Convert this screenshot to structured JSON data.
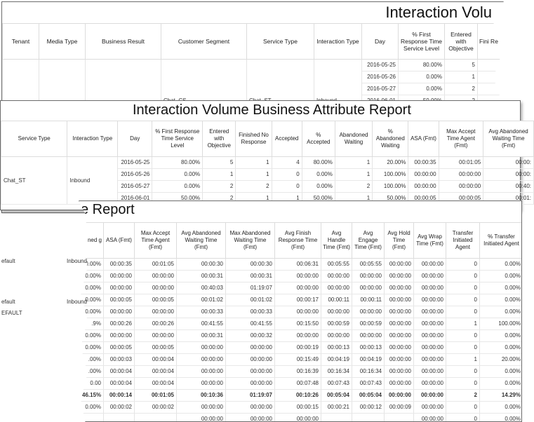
{
  "report1": {
    "title": "Interaction Volu",
    "columns": [
      "Tenant",
      "Media Type",
      "Business Result",
      "Customer Segment",
      "Service Type",
      "Interaction Type",
      "Day",
      "% First Response Time Service Level",
      "Entered with Objective",
      "Fini Re"
    ],
    "segment_label": "Chat_CS",
    "service_label": "Chat_ST",
    "interaction_label": "Inbound",
    "rows": [
      [
        "2016-05-25",
        "80.00%",
        "5"
      ],
      [
        "2016-05-26",
        "0.00%",
        "1"
      ],
      [
        "2016-05-27",
        "0.00%",
        "2"
      ],
      [
        "2016-06-01",
        "50.00%",
        "2"
      ]
    ]
  },
  "report2": {
    "title": "Interaction Volume Business Attribute Report",
    "columns": [
      "Service Type",
      "Interaction Type",
      "Day",
      "% First Response Time Service Level",
      "Entered with Objective",
      "Finished No Response",
      "Accepted",
      "% Accepted",
      "Abandoned Waiting",
      "% Abandoned Waiting",
      "ASA (Fmt)",
      "Max Accept Time Agent (Fmt)",
      "Avg Abandoned Waiting Time (Fmt)"
    ],
    "service_label": "Chat_ST",
    "interaction_label": "Inbound",
    "rows": [
      [
        "2016-05-25",
        "80.00%",
        "5",
        "1",
        "4",
        "80.00%",
        "1",
        "20.00%",
        "00:00:35",
        "00:01:05",
        "00:00:"
      ],
      [
        "2016-05-26",
        "0.00%",
        "1",
        "1",
        "0",
        "0.00%",
        "1",
        "100.00%",
        "00:00:00",
        "00:00:00",
        "00:00:"
      ],
      [
        "2016-05-27",
        "0.00%",
        "2",
        "2",
        "0",
        "0.00%",
        "2",
        "100.00%",
        "00:00:00",
        "00:00:00",
        "00:40:"
      ],
      [
        "2016-06-01",
        "50.00%",
        "2",
        "1",
        "1",
        "50.00%",
        "1",
        "50.00%",
        "00:00:05",
        "00:00:05",
        "00:01:"
      ]
    ]
  },
  "report3": {
    "title": "e Report",
    "columns": [
      "ned g",
      "ASA (Fmt)",
      "Max Accept Time Agent (Fmt)",
      "Avg Abandoned Waiting Time (Fmt)",
      "Max Abandoned Waiting Time (Fmt)",
      "Avg Finish Response Time (Fmt)",
      "Avg Handle Time (Fmt)",
      "Avg Engage Time (Fmt)",
      "Avg Hold Time (Fmt)",
      "Avg Wrap Time (Fmt)",
      "Transfer Initiated Agent",
      "% Transfer Initiated Agent"
    ],
    "rows": [
      [
        "0.00%",
        "00:00:35",
        "00:01:05",
        "00:00:30",
        "00:00:30",
        "00:06:31",
        "00:05:55",
        "00:05:55",
        "00:00:00",
        "00:00:00",
        "0",
        "0.00%"
      ],
      [
        "0.00%",
        "00:00:00",
        "00:00:00",
        "00:00:31",
        "00:00:31",
        "00:00:00",
        "00:00:00",
        "00:00:00",
        "00:00:00",
        "00:00:00",
        "0",
        "0.00%"
      ],
      [
        "0.00%",
        "00:00:00",
        "00:00:00",
        "00:40:03",
        "01:19:07",
        "00:00:00",
        "00:00:00",
        "00:00:00",
        "00:00:00",
        "00:00:00",
        "0",
        "0.00%"
      ],
      [
        "0.00%",
        "00:00:05",
        "00:00:05",
        "00:01:02",
        "00:01:02",
        "00:00:17",
        "00:00:11",
        "00:00:11",
        "00:00:00",
        "00:00:00",
        "0",
        "0.00%"
      ],
      [
        "0.00%",
        "00:00:00",
        "00:00:00",
        "00:00:33",
        "00:00:33",
        "00:00:00",
        "00:00:00",
        "00:00:00",
        "00:00:00",
        "00:00:00",
        "0",
        "0.00%"
      ],
      [
        ".9%",
        "00:00:26",
        "00:00:26",
        "00:41:55",
        "00:41:55",
        "00:15:50",
        "00:00:59",
        "00:00:59",
        "00:00:00",
        "00:00:00",
        "1",
        "100.00%"
      ],
      [
        "0.00%",
        "00:00:00",
        "00:00:00",
        "00:00:31",
        "00:00:32",
        "00:00:00",
        "00:00:00",
        "00:00:00",
        "00:00:00",
        "00:00:00",
        "0",
        "0.00%"
      ],
      [
        "0.00%",
        "00:00:05",
        "00:00:05",
        "00:00:00",
        "00:00:00",
        "00:00:19",
        "00:00:13",
        "00:00:13",
        "00:00:00",
        "00:00:00",
        "0",
        "0.00%"
      ],
      [
        ".00%",
        "00:00:03",
        "00:00:04",
        "00:00:00",
        "00:00:00",
        "00:15:49",
        "00:04:19",
        "00:04:19",
        "00:00:00",
        "00:00:00",
        "1",
        "20.00%"
      ],
      [
        ".00%",
        "00:00:04",
        "00:00:04",
        "00:00:00",
        "00:00:00",
        "00:16:39",
        "00:16:34",
        "00:16:34",
        "00:00:00",
        "00:00:00",
        "0",
        "0.00%"
      ],
      [
        "0.00",
        "00:00:04",
        "00:00:04",
        "00:00:00",
        "00:00:00",
        "00:07:48",
        "00:07:43",
        "00:07:43",
        "00:00:00",
        "00:00:00",
        "0",
        "0.00%"
      ]
    ],
    "total_row": [
      "46.15%",
      "00:00:14",
      "00:01:05",
      "00:10:36",
      "01:19:07",
      "00:10:26",
      "00:05:04",
      "00:05:04",
      "00:00:00",
      "00:00:00",
      "2",
      "14.29%"
    ],
    "extra_rows": [
      [
        "0.00%",
        "00:00:02",
        "00:00:02",
        "00:00:00",
        "00:00:00",
        "00:00:15",
        "00:00:21",
        "00:00:12",
        "00:00:09",
        "00:00:00",
        "0",
        "0.00%"
      ],
      [
        "",
        "",
        "",
        "00:00:00",
        "00:00:00",
        "00:00:00",
        "",
        "",
        "",
        "00:00:00",
        "0",
        "0.00%"
      ]
    ]
  },
  "left_strip": {
    "labels": [
      "Chat_ST",
      "Inbound",
      "efault",
      "Inbound",
      "efault",
      "Inbound",
      "EFAULT"
    ]
  }
}
